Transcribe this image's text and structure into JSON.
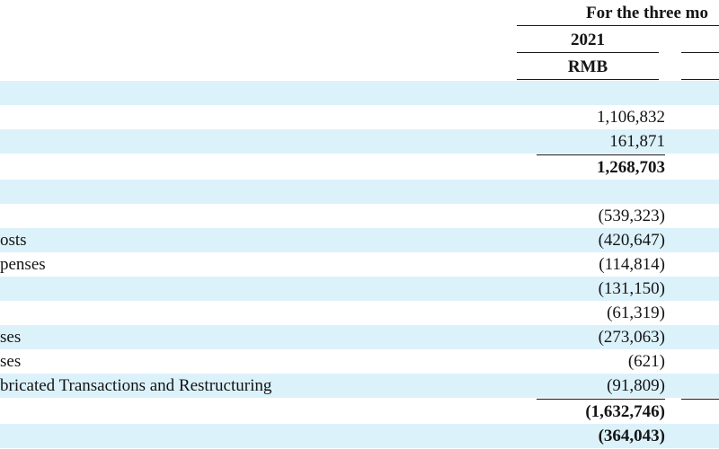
{
  "header": {
    "period": "For the three mo",
    "year": "2021",
    "currency": "RMB"
  },
  "rows": [
    {
      "label": "",
      "value": ""
    },
    {
      "label": "",
      "value": "1,106,832"
    },
    {
      "label": "",
      "value": "161,871"
    },
    {
      "label": "",
      "value": "1,268,703"
    },
    {
      "label": "",
      "value": ""
    },
    {
      "label": "",
      "value": "(539,323)"
    },
    {
      "label": "osts",
      "value": "(420,647)"
    },
    {
      "label": "penses",
      "value": "(114,814)"
    },
    {
      "label": "",
      "value": "(131,150)"
    },
    {
      "label": "",
      "value": "(61,319)"
    },
    {
      "label": "ses",
      "value": "(273,063)"
    },
    {
      "label": "ses",
      "value": "(621)"
    },
    {
      "label": "bricated Transactions and Restructuring",
      "value": "(91,809)"
    },
    {
      "label": "",
      "value": "(1,632,746)"
    },
    {
      "label": "",
      "value": "(364,043)"
    }
  ]
}
